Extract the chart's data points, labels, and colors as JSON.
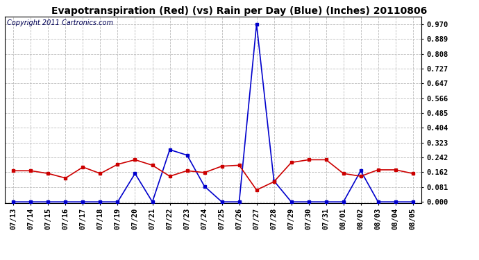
{
  "title": "Evapotranspiration (Red) (vs) Rain per Day (Blue) (Inches) 20110806",
  "copyright": "Copyright 2011 Cartronics.com",
  "x_labels": [
    "07/13",
    "07/14",
    "07/15",
    "07/16",
    "07/17",
    "07/18",
    "07/19",
    "07/20",
    "07/21",
    "07/22",
    "07/23",
    "07/24",
    "07/25",
    "07/26",
    "07/27",
    "07/28",
    "07/29",
    "07/30",
    "07/31",
    "08/01",
    "08/02",
    "08/03",
    "08/04",
    "08/05"
  ],
  "red_data": [
    0.17,
    0.17,
    0.155,
    0.13,
    0.19,
    0.155,
    0.205,
    0.23,
    0.2,
    0.14,
    0.17,
    0.16,
    0.195,
    0.2,
    0.065,
    0.11,
    0.215,
    0.23,
    0.23,
    0.155,
    0.14,
    0.175,
    0.175,
    0.155
  ],
  "blue_data": [
    0.0,
    0.0,
    0.0,
    0.0,
    0.0,
    0.0,
    0.0,
    0.155,
    0.0,
    0.285,
    0.255,
    0.085,
    0.0,
    0.0,
    0.97,
    0.115,
    0.0,
    0.0,
    0.0,
    0.0,
    0.17,
    0.0,
    0.0,
    0.0
  ],
  "y_ticks": [
    0.0,
    0.081,
    0.162,
    0.242,
    0.323,
    0.404,
    0.485,
    0.566,
    0.647,
    0.727,
    0.808,
    0.889,
    0.97
  ],
  "y_min": -0.005,
  "y_max": 1.01,
  "red_color": "#cc0000",
  "blue_color": "#0000cc",
  "grid_color": "#bbbbbb",
  "bg_color": "#ffffff",
  "title_fontsize": 10,
  "copyright_fontsize": 7,
  "tick_fontsize": 7.5
}
